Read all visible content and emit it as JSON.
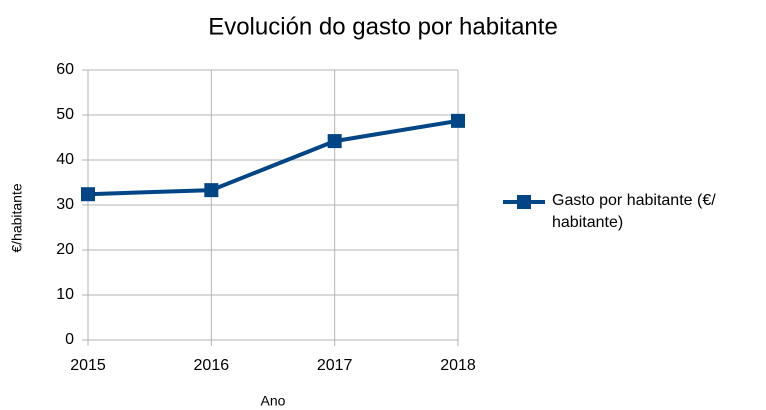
{
  "chart_data": {
    "type": "line",
    "title": "Evolución do gasto por habitante",
    "x_label": "Ano",
    "y_label": "€/habitante",
    "categories": [
      "2015",
      "2016",
      "2017",
      "2018"
    ],
    "series": [
      {
        "name": "Gasto por habitante (€/ habitante)",
        "color": "#004586",
        "values": [
          32.4,
          33.3,
          44.2,
          48.7
        ]
      }
    ],
    "ylim": [
      0,
      60
    ],
    "yticks": [
      0,
      10,
      20,
      30,
      40,
      50,
      60
    ],
    "grid": true,
    "legend": "right"
  }
}
